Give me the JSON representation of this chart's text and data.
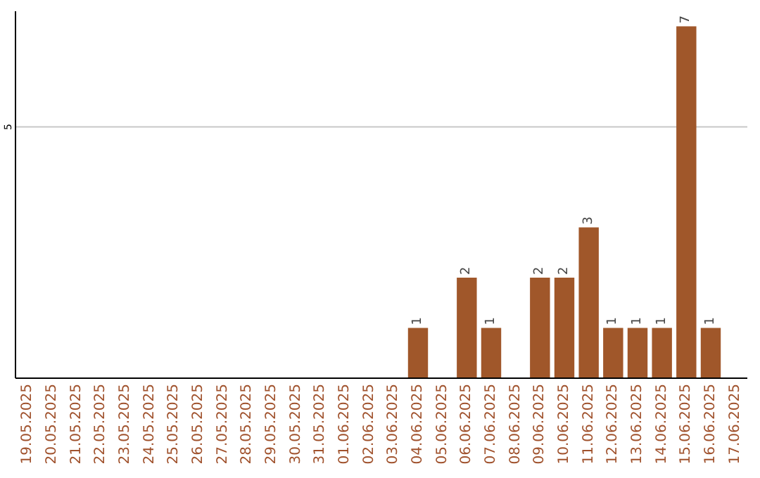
{
  "chart_data": {
    "type": "bar",
    "ylim": [
      0,
      7.3
    ],
    "categories": [
      "19.05.2025",
      "20.05.2025",
      "21.05.2025",
      "22.05.2025",
      "23.05.2025",
      "24.05.2025",
      "25.05.2025",
      "26.05.2025",
      "27.05.2025",
      "28.05.2025",
      "29.05.2025",
      "30.05.2025",
      "31.05.2025",
      "01.06.2025",
      "02.06.2025",
      "03.06.2025",
      "04.06.2025",
      "05.06.2025",
      "06.06.2025",
      "07.06.2025",
      "08.06.2025",
      "09.06.2025",
      "10.06.2025",
      "11.06.2025",
      "12.06.2025",
      "13.06.2025",
      "14.06.2025",
      "15.06.2025",
      "16.06.2025",
      "17.06.2025"
    ],
    "values": [
      null,
      null,
      null,
      null,
      null,
      null,
      null,
      null,
      null,
      null,
      null,
      null,
      null,
      null,
      null,
      null,
      1,
      null,
      2,
      1,
      null,
      2,
      2,
      3,
      1,
      1,
      1,
      7,
      1,
      null
    ],
    "value_labels": [
      null,
      null,
      null,
      null,
      null,
      null,
      null,
      null,
      null,
      null,
      null,
      null,
      null,
      null,
      null,
      null,
      "1",
      null,
      "2",
      "1",
      null,
      "2",
      "2",
      "3",
      "1",
      "1",
      "1",
      "7",
      "1",
      null
    ],
    "color": "#a0572a",
    "ref_lines": [
      {
        "axis": "y",
        "value": 5,
        "label": "5",
        "color": "#c8c8c8"
      }
    ]
  }
}
